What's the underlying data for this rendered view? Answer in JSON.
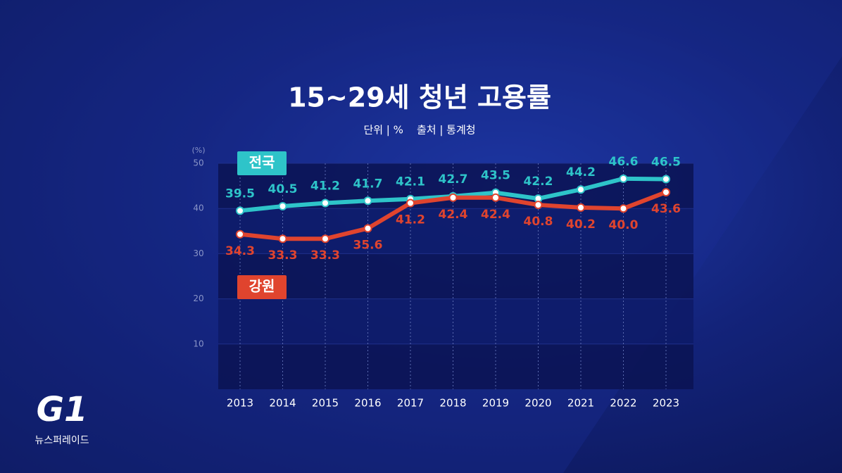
{
  "chart_data": {
    "type": "line",
    "title": "15~29세 청년 고용률",
    "subtitle": "단위 | %    출처 | 통계청",
    "y_unit": "(%)",
    "categories": [
      "2013",
      "2014",
      "2015",
      "2016",
      "2017",
      "2018",
      "2019",
      "2020",
      "2021",
      "2022",
      "2023"
    ],
    "series": [
      {
        "name": "전국",
        "color": "#2ec4c9",
        "values": [
          39.5,
          40.5,
          41.2,
          41.7,
          42.1,
          42.7,
          43.5,
          42.2,
          44.2,
          46.6,
          46.5
        ],
        "value_labels": [
          "39.5",
          "40.5",
          "41.2",
          "41.7",
          "42.1",
          "42.7",
          "43.5",
          "42.2",
          "44.2",
          "46.6",
          "46.5"
        ]
      },
      {
        "name": "강원",
        "color": "#e0442e",
        "values": [
          34.3,
          33.3,
          33.3,
          35.6,
          41.2,
          42.4,
          42.4,
          40.8,
          40.2,
          40.0,
          43.6
        ],
        "value_labels": [
          "34.3",
          "33.3",
          "33.3",
          "35.6",
          "41.2",
          "42.4",
          "42.4",
          "40.8",
          "40.2",
          "40.0",
          "43.6"
        ]
      }
    ],
    "ylim": [
      0,
      50
    ],
    "yticks": [
      10,
      20,
      30,
      40,
      50
    ],
    "grid": true,
    "logo": {
      "mark": "G1",
      "program": "뉴스퍼레이드"
    }
  }
}
